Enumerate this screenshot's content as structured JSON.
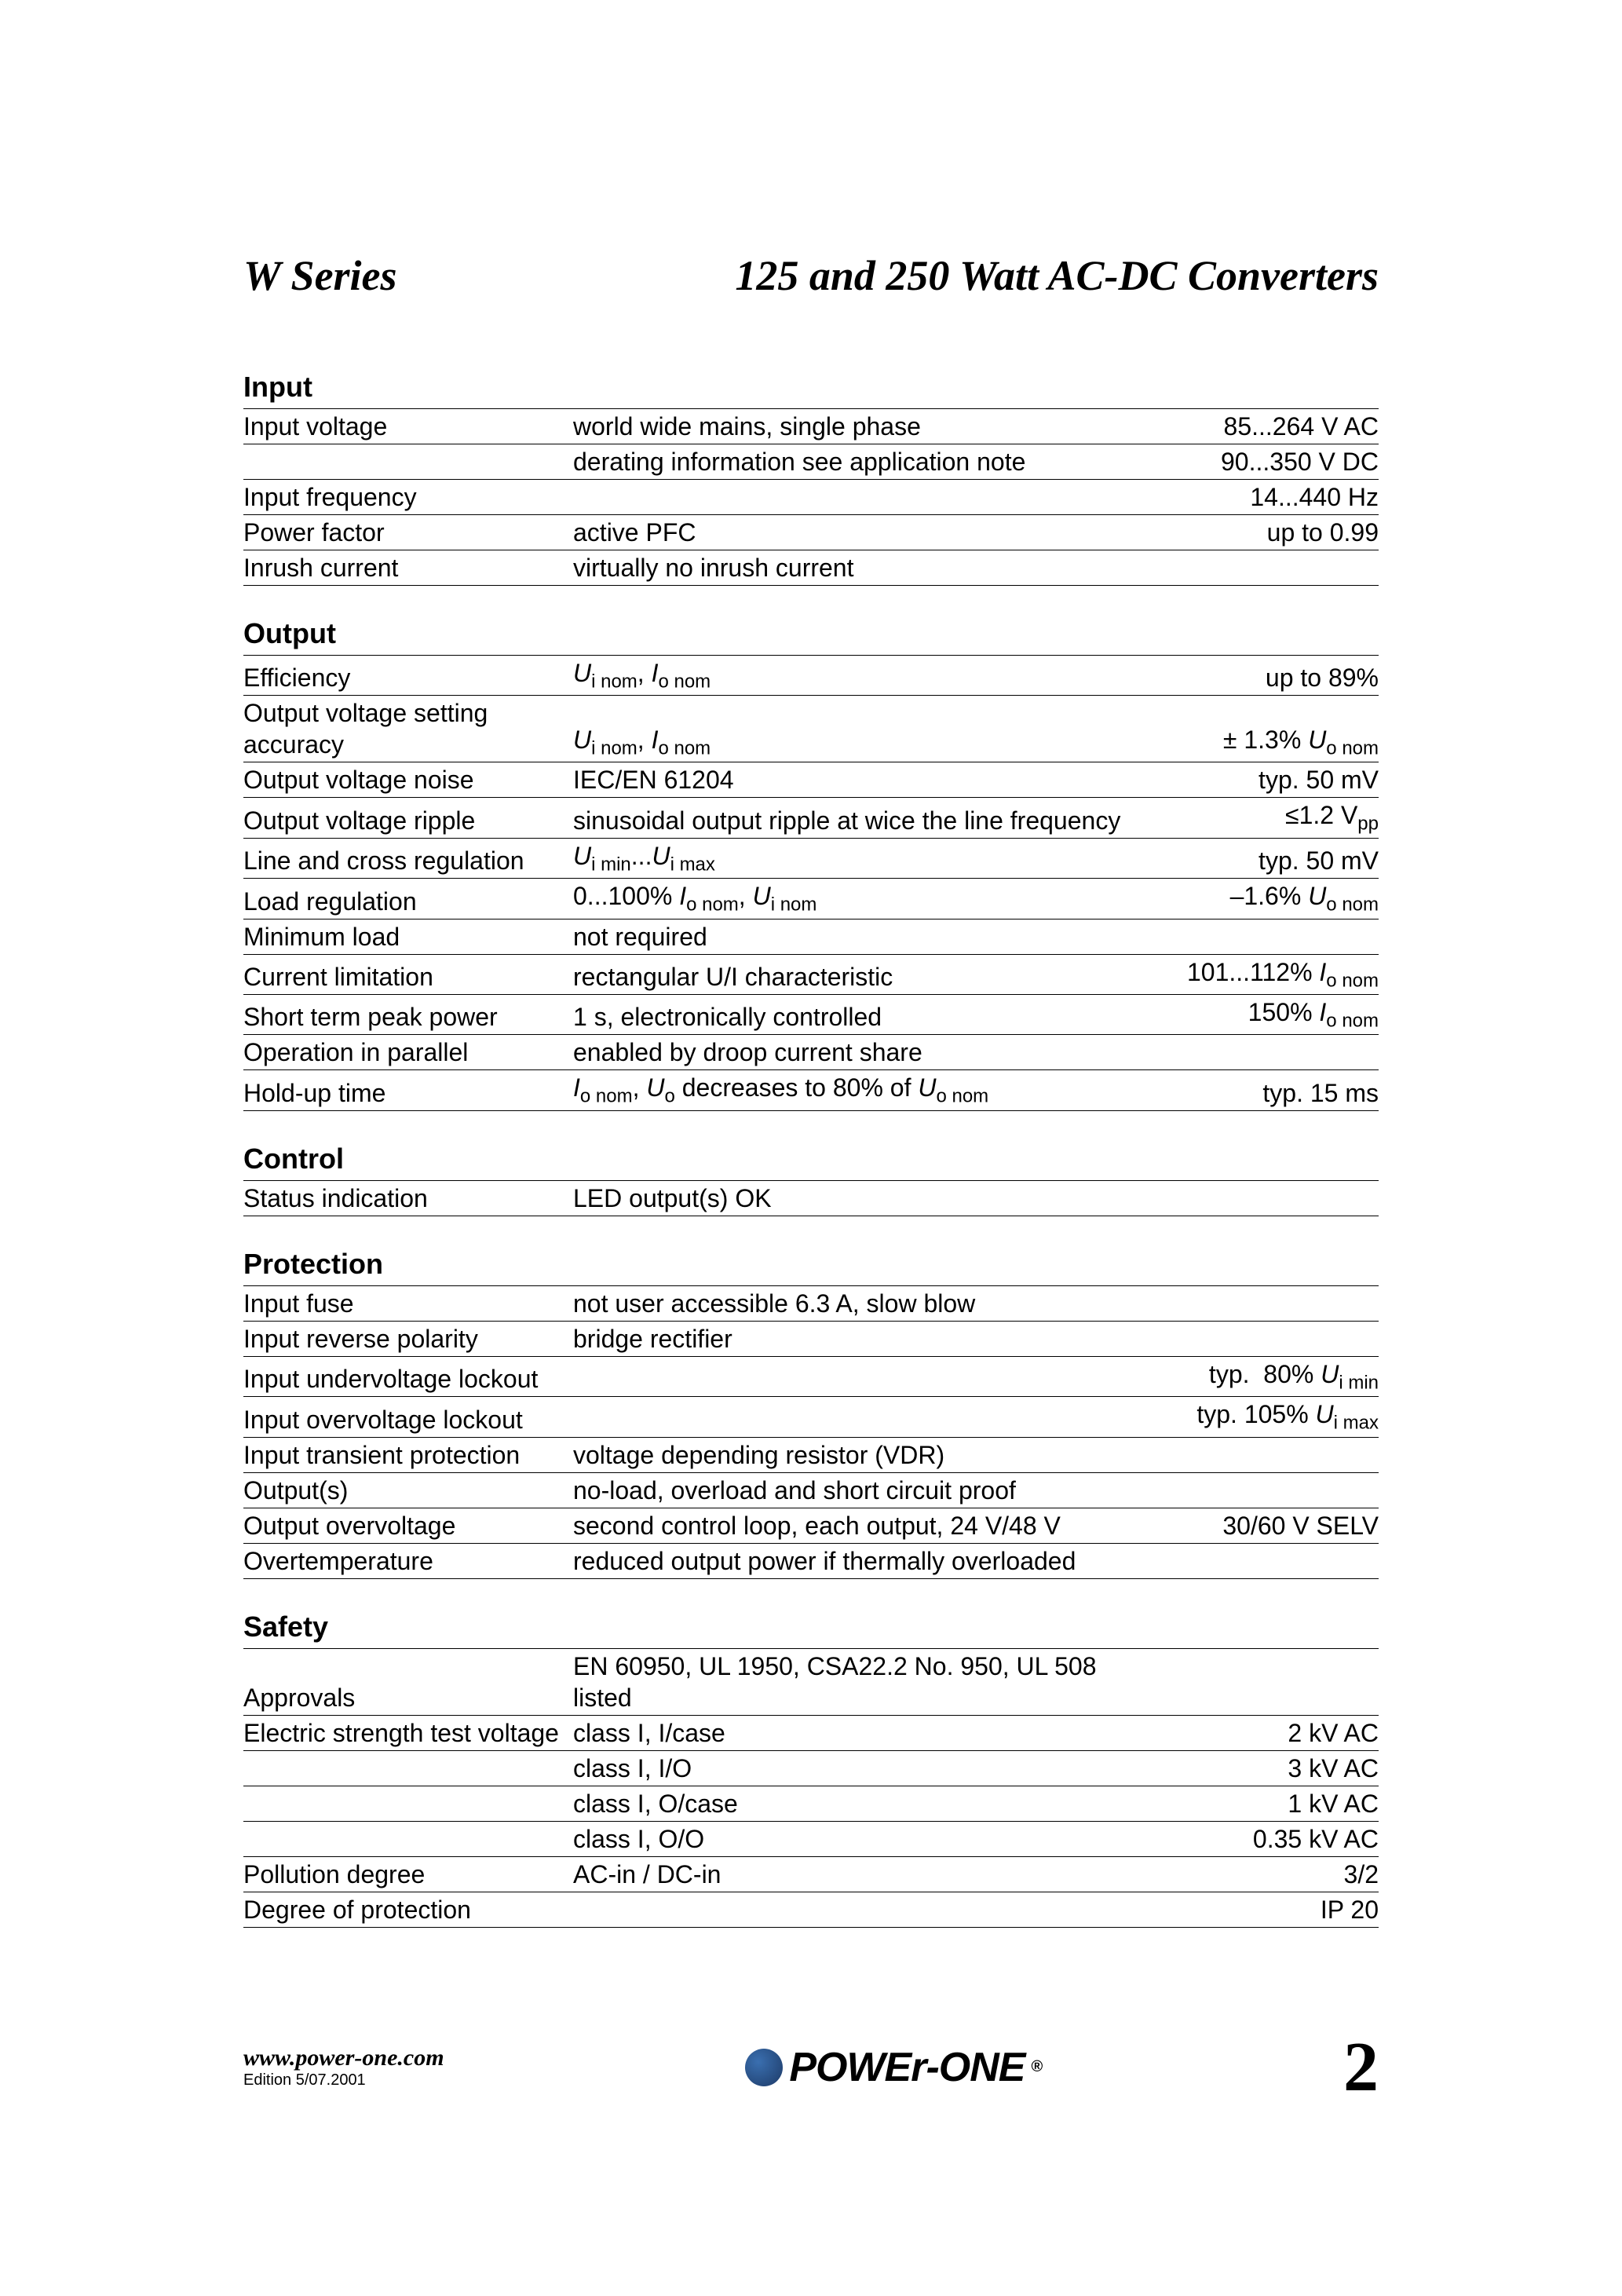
{
  "header": {
    "left": "W Series",
    "right": "125 and 250 Watt AC-DC Converters"
  },
  "fontsizes": {
    "title": 54,
    "section": 36,
    "body": 32,
    "sub": 24
  },
  "colors": {
    "text": "#000000",
    "bg": "#ffffff",
    "rule": "#000000",
    "globe1": "#3a6fb0",
    "globe2": "#1d3a66"
  },
  "sections": {
    "input": {
      "title": "Input",
      "rows": [
        {
          "c1": "Input voltage",
          "c2": "world wide mains, single phase",
          "c3": "85...264 V AC"
        },
        {
          "c1": "",
          "c2": "derating information see application note",
          "c3": "90...350 V DC"
        },
        {
          "c1": "Input frequency",
          "c2": "",
          "c3": "14...440 Hz"
        },
        {
          "c1": "Power factor",
          "c2": "active PFC",
          "c3": "up to 0.99"
        },
        {
          "c1": "Inrush current",
          "c2": "virtually no inrush current",
          "c3": ""
        }
      ]
    },
    "output": {
      "title": "Output",
      "rows": [
        {
          "c1": "Efficiency",
          "c2_html": "<span class='ital'>U</span><span class='sub'>i nom</span>, <span class='ital'>I</span><span class='sub'>o nom</span>",
          "c3": "up to 89%"
        },
        {
          "c1": "Output voltage setting accuracy",
          "c2_html": "<span class='ital'>U</span><span class='sub'>i nom</span>, <span class='ital'>I</span><span class='sub'>o nom</span>",
          "c3_html": "± 1.3% <span class='ital'>U</span><span class='sub'>o nom</span>"
        },
        {
          "c1": "Output voltage noise",
          "c2": "IEC/EN 61204",
          "c3": "typ. 50 mV"
        },
        {
          "c1": "Output voltage ripple",
          "c2": "sinusoidal output ripple at wice the line frequency",
          "c3_html": "≤1.2 V<span class='sub'>pp</span>"
        },
        {
          "c1": "Line and cross regulation",
          "c2_html": "<span class='ital'>U</span><span class='sub'>i min</span>...<span class='ital'>U</span><span class='sub'>i max</span>",
          "c3": "typ. 50 mV"
        },
        {
          "c1": "Load regulation",
          "c2_html": "0...100% <span class='ital'>I</span><span class='sub'>o nom</span>, <span class='ital'>U</span><span class='sub'>i nom</span>",
          "c3_html": "–1.6% <span class='ital'>U</span><span class='sub'>o nom</span>"
        },
        {
          "c1": "Minimum load",
          "c2": "not required",
          "c3": ""
        },
        {
          "c1": "Current limitation",
          "c2": "rectangular U/I characteristic",
          "c3_html": "101...112% <span class='ital'>I</span><span class='sub'>o nom</span>"
        },
        {
          "c1": "Short term peak power",
          "c2": "1 s, electronically controlled",
          "c3_html": "150% <span class='ital'>I</span><span class='sub'>o nom</span>"
        },
        {
          "c1": "Operation in parallel",
          "c2": "enabled by droop current share",
          "c3": ""
        },
        {
          "c1": "Hold-up time",
          "c2_html": "<span class='ital'>I</span><span class='sub'>o nom</span>, <span class='ital'>U</span><span class='sub'>o</span> decreases to 80% of <span class='ital'>U</span><span class='sub'>o nom</span>",
          "c3": "typ. 15 ms"
        }
      ]
    },
    "control": {
      "title": "Control",
      "rows": [
        {
          "c1": "Status indication",
          "c2": "LED output(s) OK",
          "c3": ""
        }
      ]
    },
    "protection": {
      "title": "Protection",
      "rows": [
        {
          "c1": "Input fuse",
          "c2": "not user accessible 6.3 A, slow blow",
          "c3": ""
        },
        {
          "c1": "Input reverse polarity",
          "c2": "bridge rectifier",
          "c3": ""
        },
        {
          "c1": "Input undervoltage lockout",
          "c2": "",
          "c3_html": "typ.&nbsp; 80% <span class='ital'>U</span><span class='sub'>i min</span>"
        },
        {
          "c1": "Input overvoltage lockout",
          "c2": "",
          "c3_html": "typ. 105% <span class='ital'>U</span><span class='sub'>i max</span>"
        },
        {
          "c1": "Input transient protection",
          "c2": "voltage depending resistor (VDR)",
          "c3": ""
        },
        {
          "c1": "Output(s)",
          "c2": "no-load, overload and short circuit proof",
          "c3": ""
        },
        {
          "c1": "Output overvoltage",
          "c2": "second control loop, each output, 24 V/48 V",
          "c3": "30/60 V SELV"
        },
        {
          "c1": "Overtemperature",
          "c2": "reduced output power if thermally overloaded",
          "c3": ""
        }
      ]
    },
    "safety": {
      "title": "Safety",
      "rows": [
        {
          "c1": "Approvals",
          "c2": "EN 60950, UL 1950, CSA22.2 No. 950, UL 508 listed",
          "c3": ""
        },
        {
          "c1": "Electric strength test voltage",
          "c2": "class I, I/case",
          "c3": "2 kV AC"
        },
        {
          "c1": "",
          "c2": "class I, I/O",
          "c3": "3 kV AC"
        },
        {
          "c1": "",
          "c2": "class I, O/case",
          "c3": "1 kV AC"
        },
        {
          "c1": "",
          "c2": "class I, O/O",
          "c3": "0.35 kV AC"
        },
        {
          "c1": "Pollution degree",
          "c2": "AC-in / DC-in",
          "c3": "3/2"
        },
        {
          "c1": "Degree of protection",
          "c2": "",
          "c3": "IP 20"
        }
      ]
    }
  },
  "footer": {
    "url": "www.power-one.com",
    "edition": "Edition 5/07.2001",
    "brand": "POWEr-ONE",
    "page": "2"
  }
}
